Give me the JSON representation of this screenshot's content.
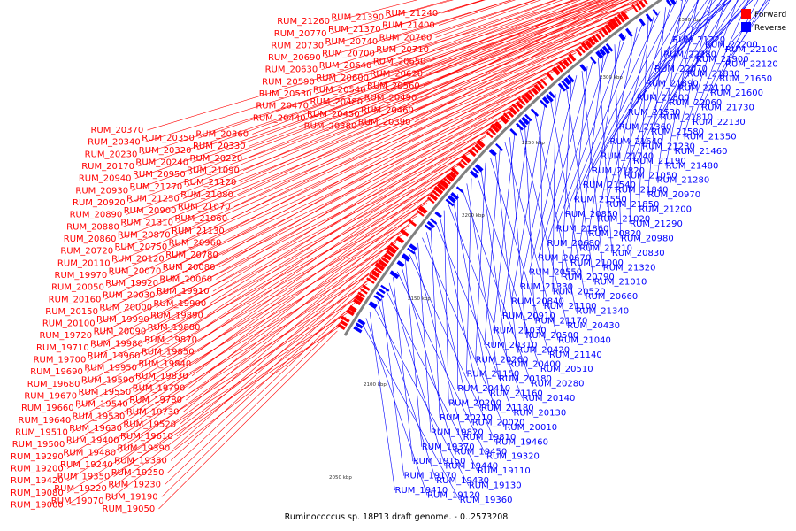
{
  "caption": "Ruminococcus sp. 18P13 draft genome. - 0..2573208",
  "legend": {
    "forward": {
      "label": "Forward",
      "color": "#ff0000"
    },
    "reverse": {
      "label": "Reverse",
      "color": "#0000ff"
    }
  },
  "backbone_color": "#808080",
  "ticks": [
    "2050 kbp",
    "2100 kbp",
    "2150 kbp",
    "2200 kbp",
    "2250 kbp",
    "2300 kbp",
    "2350 kbp"
  ],
  "forward_labels": [
    "RUM_21240",
    "RUM_21390",
    "RUM_21260",
    "RUM_21400",
    "RUM_21370",
    "RUM_20770",
    "RUM_20760",
    "RUM_20740",
    "RUM_20730",
    "RUM_20710",
    "RUM_20700",
    "RUM_20690",
    "RUM_20650",
    "RUM_20640",
    "RUM_20630",
    "RUM_20620",
    "RUM_20600",
    "RUM_20590",
    "RUM_20560",
    "RUM_20540",
    "RUM_20530",
    "RUM_20490",
    "RUM_20480",
    "RUM_20470",
    "RUM_20460",
    "RUM_20450",
    "RUM_20440",
    "RUM_20390",
    "RUM_20380",
    "RUM_20370",
    "RUM_20360",
    "RUM_20350",
    "RUM_20340",
    "RUM_20330",
    "RUM_20320",
    "RUM_20230",
    "RUM_20220",
    "RUM_20240",
    "RUM_20170",
    "RUM_21090",
    "RUM_20950",
    "RUM_20940",
    "RUM_21120",
    "RUM_21270",
    "RUM_20930",
    "RUM_21080",
    "RUM_21250",
    "RUM_20920",
    "RUM_21070",
    "RUM_20900",
    "RUM_20890",
    "RUM_21060",
    "RUM_21310",
    "RUM_20880",
    "RUM_21130",
    "RUM_20870",
    "RUM_20860",
    "RUM_20960",
    "RUM_20750",
    "RUM_20720",
    "RUM_20780",
    "RUM_20120",
    "RUM_20110",
    "RUM_20080",
    "RUM_20070",
    "RUM_19970",
    "RUM_20060",
    "RUM_19920",
    "RUM_20050",
    "RUM_19910",
    "RUM_20030",
    "RUM_20160",
    "RUM_19900",
    "RUM_20000",
    "RUM_20150",
    "RUM_19890",
    "RUM_19990",
    "RUM_20100",
    "RUM_19880",
    "RUM_20090",
    "RUM_19720",
    "RUM_19870",
    "RUM_19980",
    "RUM_19710",
    "RUM_19850",
    "RUM_19960",
    "RUM_19700",
    "RUM_19840",
    "RUM_19950",
    "RUM_19690",
    "RUM_19830",
    "RUM_19590",
    "RUM_19680",
    "RUM_19790",
    "RUM_19550",
    "RUM_19670",
    "RUM_19780",
    "RUM_19540",
    "RUM_19660",
    "RUM_19730",
    "RUM_19530",
    "RUM_19640",
    "RUM_19520",
    "RUM_19630",
    "RUM_19510",
    "RUM_19610",
    "RUM_19400",
    "RUM_19500",
    "RUM_19390",
    "RUM_19480",
    "RUM_19290",
    "RUM_19380",
    "RUM_19240",
    "RUM_19200",
    "RUM_19250",
    "RUM_19350",
    "RUM_19420",
    "RUM_19230",
    "RUM_19220",
    "RUM_19080",
    "RUM_19190",
    "RUM_19070",
    "RUM_19060",
    "RUM_19050"
  ],
  "reverse_labels": [
    "RUM_21220",
    "RUM_22200",
    "RUM_22100",
    "RUM_22280",
    "RUM_21900",
    "RUM_22120",
    "RUM_22070",
    "RUM_21830",
    "RUM_21650",
    "RUM_21890",
    "RUM_22110",
    "RUM_21600",
    "RUM_21800",
    "RUM_22060",
    "RUM_21730",
    "RUM_21530",
    "RUM_21810",
    "RUM_22130",
    "RUM_21360",
    "RUM_21580",
    "RUM_21350",
    "RUM_21640",
    "RUM_21230",
    "RUM_21460",
    "RUM_21740",
    "RUM_21190",
    "RUM_21480",
    "RUM_21820",
    "RUM_21050",
    "RUM_21280",
    "RUM_21540",
    "RUM_21840",
    "RUM_20970",
    "RUM_21550",
    "RUM_21850",
    "RUM_21200",
    "RUM_20850",
    "RUM_21020",
    "RUM_21290",
    "RUM_21860",
    "RUM_20820",
    "RUM_20980",
    "RUM_20680",
    "RUM_21210",
    "RUM_20830",
    "RUM_20670",
    "RUM_21000",
    "RUM_21320",
    "RUM_20550",
    "RUM_20790",
    "RUM_21010",
    "RUM_21330",
    "RUM_20520",
    "RUM_20660",
    "RUM_20840",
    "RUM_21100",
    "RUM_21340",
    "RUM_20910",
    "RUM_21170",
    "RUM_20430",
    "RUM_21030",
    "RUM_20500",
    "RUM_21040",
    "RUM_20310",
    "RUM_20420",
    "RUM_21140",
    "RUM_20260",
    "RUM_20400",
    "RUM_20510",
    "RUM_21150",
    "RUM_20180",
    "RUM_20280",
    "RUM_20410",
    "RUM_21160",
    "RUM_20140",
    "RUM_20200",
    "RUM_21180",
    "RUM_20130",
    "RUM_20210",
    "RUM_20020",
    "RUM_20010",
    "RUM_19820",
    "RUM_19810",
    "RUM_19460",
    "RUM_19370",
    "RUM_19450",
    "RUM_19320",
    "RUM_19150",
    "RUM_19440",
    "RUM_19110",
    "RUM_19170",
    "RUM_19430",
    "RUM_19130",
    "RUM_19410",
    "RUM_19120",
    "RUM_19360"
  ]
}
